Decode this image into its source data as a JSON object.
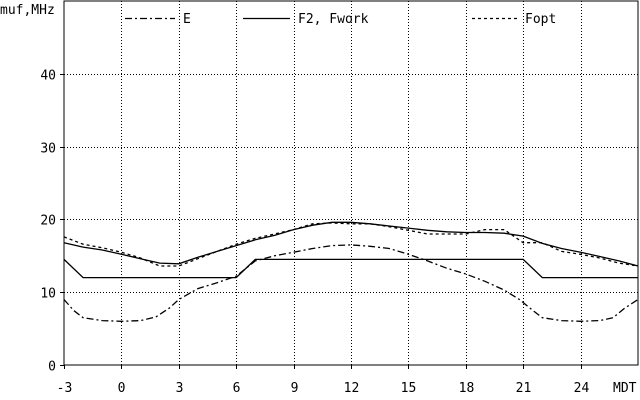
{
  "chart_data": {
    "type": "line",
    "ylabel": "muf,MHz",
    "xlim": [
      -3,
      27
    ],
    "ylim": [
      0,
      50
    ],
    "xticks": [
      -3,
      0,
      3,
      6,
      9,
      12,
      15,
      18,
      21,
      24
    ],
    "xtick_labels": [
      "-3",
      "0",
      "3",
      "6",
      "9",
      "12",
      "15",
      "18",
      "21",
      "24"
    ],
    "x_unit_label": "MDT",
    "yticks": [
      0,
      10,
      20,
      30,
      40
    ],
    "ytick_labels": [
      "0",
      "10",
      "20",
      "30",
      "40"
    ],
    "grid": true,
    "legend_position": "top",
    "series": [
      {
        "name": "E",
        "style": "dashdot",
        "x": [
          -3,
          -2.5,
          -2,
          -1,
          0,
          1,
          1.8,
          2.5,
          3,
          4,
          5,
          6,
          7,
          8,
          9,
          10,
          11,
          12,
          13,
          14,
          15,
          16,
          17,
          18,
          19,
          20,
          20.8,
          21.5,
          22,
          23,
          24,
          25,
          25.7,
          26.3,
          27
        ],
        "values": [
          9,
          7.5,
          6.5,
          6.1,
          6,
          6.1,
          6.6,
          7.8,
          9,
          10.5,
          11.3,
          12.2,
          14.3,
          15,
          15.5,
          16,
          16.4,
          16.5,
          16.3,
          16,
          15.2,
          14.3,
          13.3,
          12.5,
          11.5,
          10.3,
          9,
          7.5,
          6.5,
          6.1,
          6,
          6.1,
          6.5,
          7.8,
          9
        ]
      },
      {
        "name": "F2, Fwork",
        "style": "solid",
        "x": [
          -3,
          -2,
          6,
          7,
          21,
          22,
          27
        ],
        "values": [
          14.5,
          12,
          12,
          14.5,
          14.5,
          12,
          12
        ]
      },
      {
        "name": "F2, Fwork",
        "style": "solid",
        "x": [
          -3,
          -2,
          -1,
          0,
          1,
          2,
          3,
          4,
          5,
          6,
          7,
          8,
          9,
          10,
          11,
          12,
          13,
          14,
          15,
          16,
          17,
          18,
          19,
          20,
          21,
          22,
          23,
          24,
          25,
          26,
          27
        ],
        "values": [
          16.8,
          16.2,
          15.8,
          15.2,
          14.6,
          14,
          13.9,
          14.8,
          15.6,
          16.4,
          17.2,
          17.8,
          18.6,
          19.2,
          19.6,
          19.6,
          19.4,
          19.1,
          18.8,
          18.5,
          18.3,
          18.2,
          18.2,
          18.1,
          17.7,
          16.7,
          16,
          15.5,
          14.9,
          14.3,
          13.6
        ]
      },
      {
        "name": "Fopt",
        "style": "dotted",
        "x": [
          -3,
          -2,
          -1,
          0,
          1,
          2,
          3,
          4,
          5,
          6,
          7,
          8,
          9,
          10,
          11,
          12,
          13,
          14,
          15,
          16,
          17,
          18,
          19,
          20,
          21,
          22,
          23,
          24,
          25,
          26,
          27
        ],
        "values": [
          17.6,
          16.6,
          16.1,
          15.5,
          14.7,
          13.6,
          13.6,
          14.6,
          15.6,
          16.6,
          17.4,
          18,
          18.6,
          19.4,
          19.5,
          19.4,
          19.4,
          19.0,
          18.5,
          18.0,
          18.0,
          18.0,
          18.6,
          18.6,
          16.8,
          16.8,
          15.6,
          15.2,
          14.7,
          14.0,
          13.6
        ]
      }
    ],
    "legend": [
      "E",
      "F2, Fwork",
      "Fopt"
    ]
  }
}
